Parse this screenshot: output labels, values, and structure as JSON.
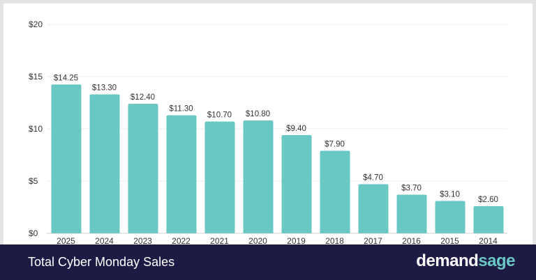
{
  "chart_data": {
    "type": "bar",
    "title": "Total Cyber Monday Sales",
    "categories": [
      "2025",
      "2024",
      "2023",
      "2022",
      "2021",
      "2020",
      "2019",
      "2018",
      "2017",
      "2016",
      "2015",
      "2014"
    ],
    "values": [
      14.25,
      13.3,
      12.4,
      11.3,
      10.7,
      10.8,
      9.4,
      7.9,
      4.7,
      3.7,
      3.1,
      2.6
    ],
    "data_labels": [
      "$14.25",
      "$13.30",
      "$12.40",
      "$11.30",
      "$10.70",
      "$10.80",
      "$9.40",
      "$7.90",
      "$4.70",
      "$3.70",
      "$3.10",
      "$2.60"
    ],
    "y_ticks": [
      0,
      5,
      10,
      15,
      20
    ],
    "y_tick_labels": [
      "$0",
      "$5",
      "$10",
      "$15",
      "$20"
    ],
    "ylim": [
      0,
      20
    ],
    "grid": true,
    "bar_color": "#69c8c3"
  },
  "footer": {
    "title": "Total Cyber Monday Sales",
    "brand_part1": "demand",
    "brand_part2": "sage",
    "background": "#1d1a43"
  }
}
